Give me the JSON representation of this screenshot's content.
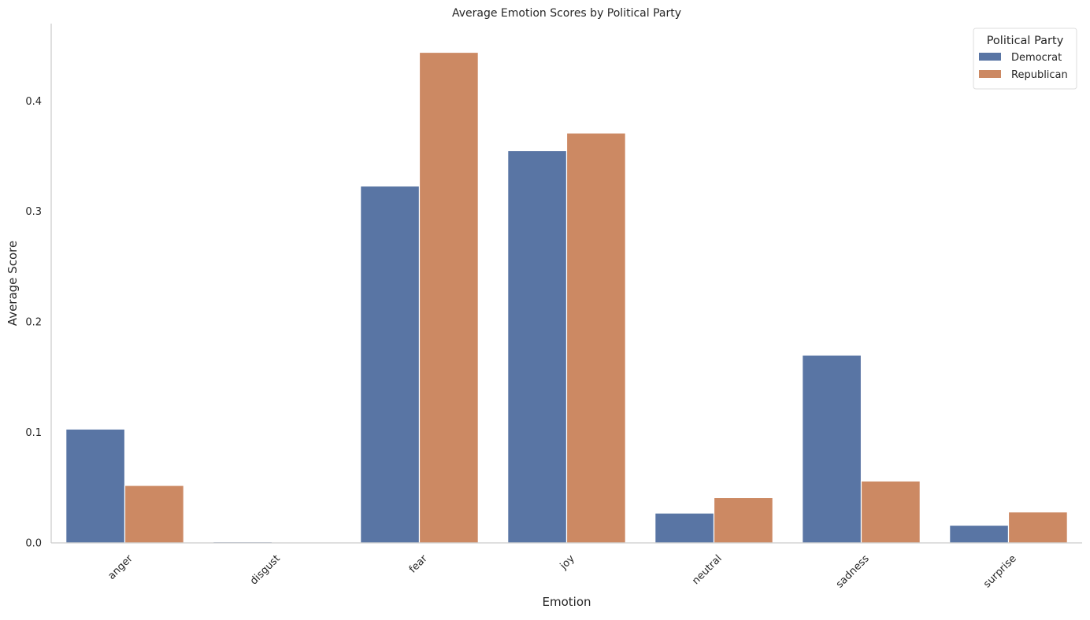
{
  "chart_data": {
    "type": "bar",
    "title": "Average Emotion Scores by Political Party",
    "xlabel": "Emotion",
    "ylabel": "Average Score",
    "categories": [
      "anger",
      "disgust",
      "fear",
      "joy",
      "neutral",
      "sadness",
      "surprise"
    ],
    "series": [
      {
        "name": "Democrat",
        "color": "#5975a4",
        "values": [
          0.103,
          0.001,
          0.323,
          0.355,
          0.027,
          0.17,
          0.016
        ]
      },
      {
        "name": "Republican",
        "color": "#cc8963",
        "values": [
          0.052,
          0.0,
          0.444,
          0.371,
          0.041,
          0.056,
          0.028
        ]
      }
    ],
    "ylim": [
      0,
      0.47
    ],
    "yticks": [
      0.0,
      0.1,
      0.2,
      0.3,
      0.4
    ],
    "ytick_labels": [
      "0.0",
      "0.1",
      "0.2",
      "0.3",
      "0.4"
    ],
    "grid": false,
    "legend": {
      "title": "Political Party",
      "placement": "top-right"
    },
    "x_tick_rotation": "45"
  }
}
